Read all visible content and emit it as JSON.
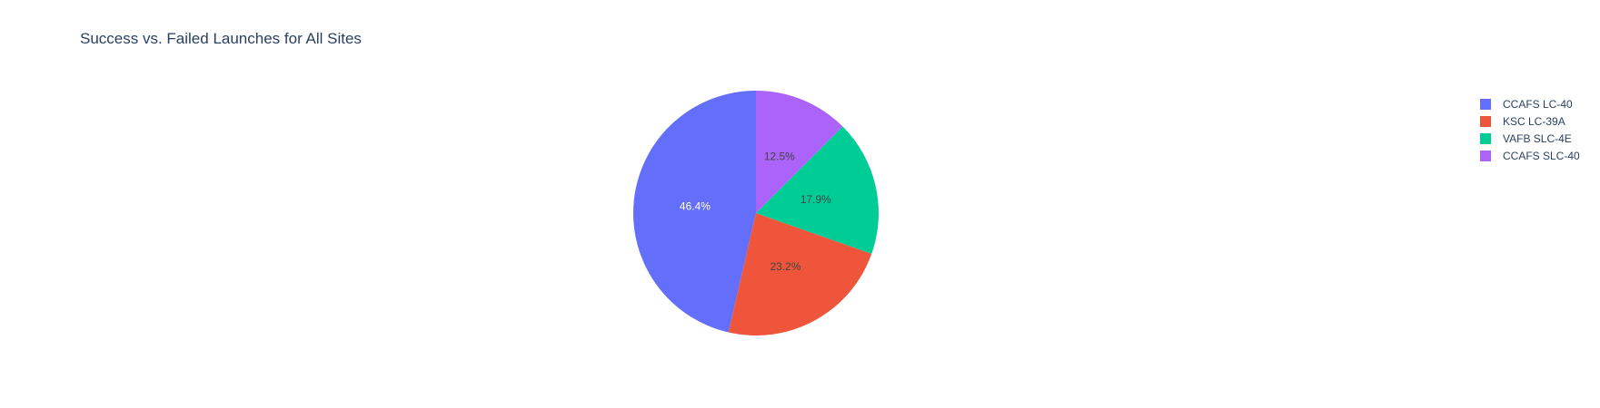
{
  "chart_data": {
    "type": "pie",
    "title": "Success vs. Failed Launches for All Sites",
    "series": [
      {
        "name": "CCAFS LC-40",
        "value": 46.4,
        "label": "46.4%",
        "color": "#636efa",
        "label_color": "#ffffff"
      },
      {
        "name": "KSC LC-39A",
        "value": 23.2,
        "label": "23.2%",
        "color": "#ef553b",
        "label_color": "#444444"
      },
      {
        "name": "VAFB SLC-4E",
        "value": 17.9,
        "label": "17.9%",
        "color": "#00cc96",
        "label_color": "#444444"
      },
      {
        "name": "CCAFS SLC-40",
        "value": 12.5,
        "label": "12.5%",
        "color": "#ab63fa",
        "label_color": "#444444"
      }
    ],
    "legend_position": "top-right",
    "direction": "counterclockwise",
    "start_angle": "top"
  }
}
